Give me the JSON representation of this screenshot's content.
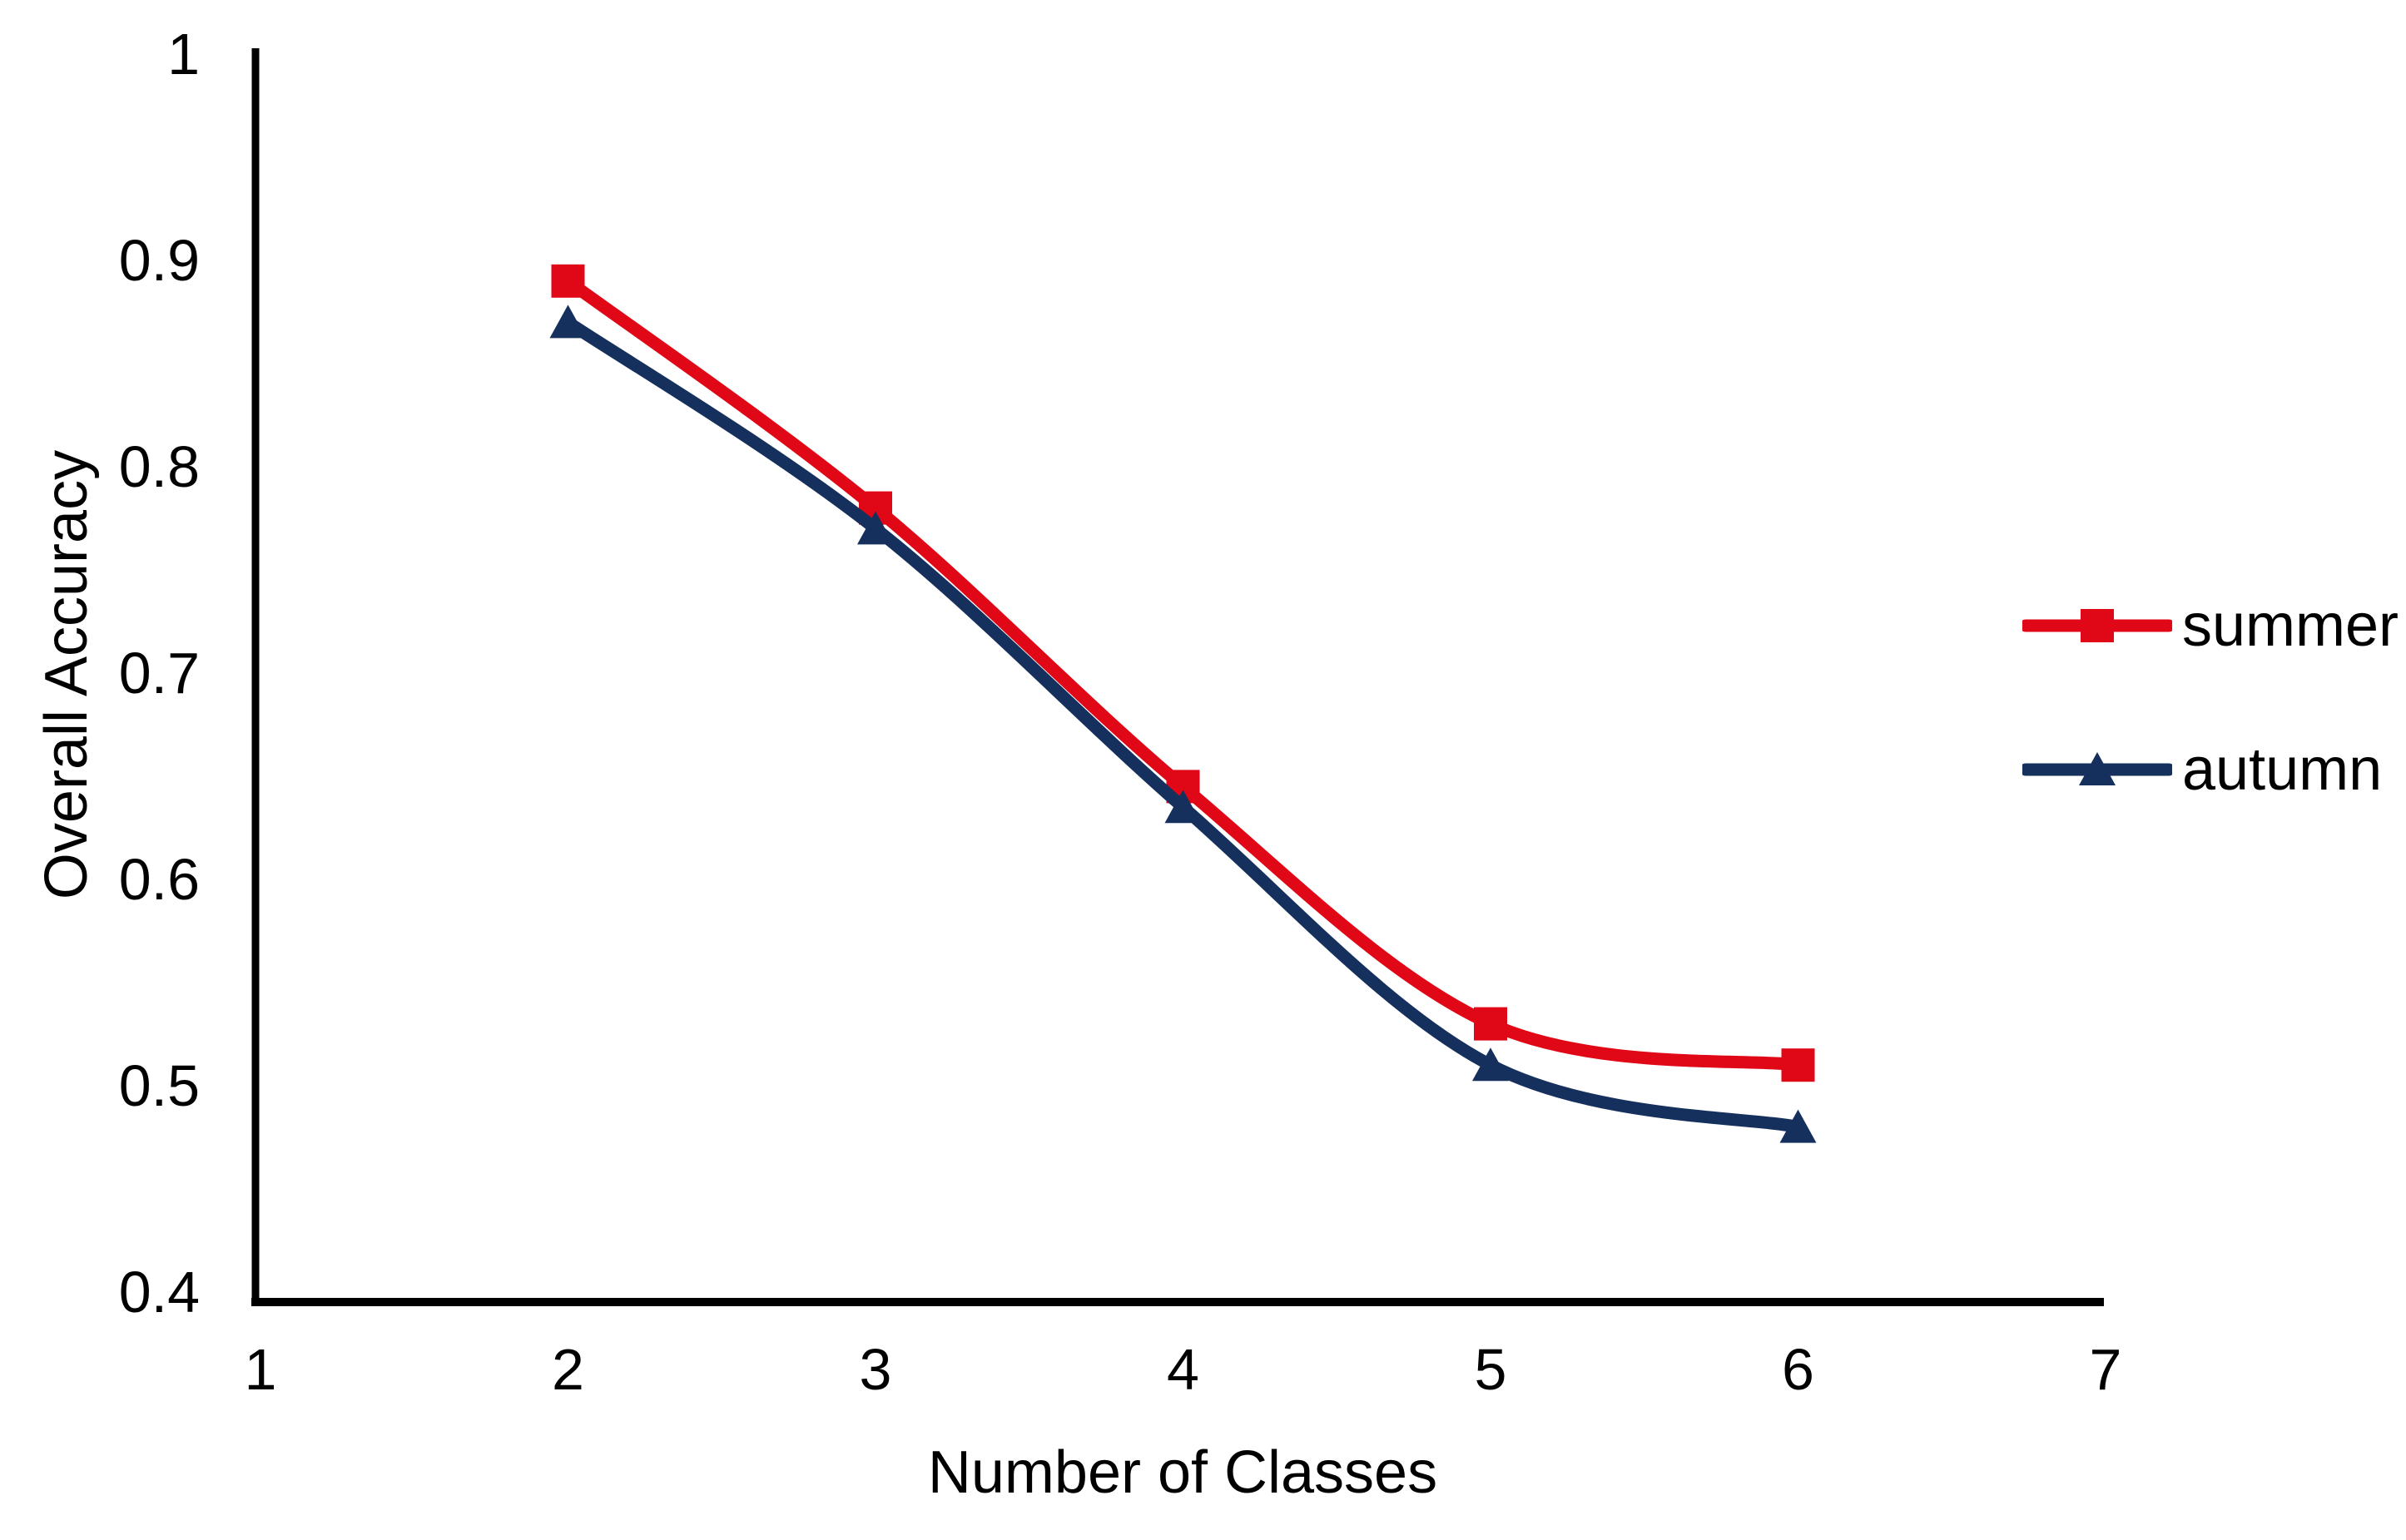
{
  "chart_data": {
    "type": "line",
    "title": "",
    "xlabel": "Number of Classes",
    "ylabel": "Overall Accuracy",
    "x": [
      2,
      3,
      4,
      5,
      6
    ],
    "series": [
      {
        "name": "summer",
        "color": "#e00717",
        "marker": "square",
        "values": [
          0.89,
          0.78,
          0.645,
          0.53,
          0.51
        ]
      },
      {
        "name": "autumn",
        "color": "#16305e",
        "marker": "triangle",
        "values": [
          0.87,
          0.77,
          0.635,
          0.51,
          0.48
        ]
      }
    ],
    "xlim": [
      1,
      7
    ],
    "ylim": [
      0.4,
      1
    ],
    "xticks": [
      {
        "v": 1,
        "label": "1"
      },
      {
        "v": 2,
        "label": "2"
      },
      {
        "v": 3,
        "label": "3"
      },
      {
        "v": 4,
        "label": "4"
      },
      {
        "v": 5,
        "label": "5"
      },
      {
        "v": 6,
        "label": "6"
      },
      {
        "v": 7,
        "label": "7"
      }
    ],
    "yticks": [
      {
        "v": 1,
        "label": "1"
      },
      {
        "v": 0.9,
        "label": "0.9"
      },
      {
        "v": 0.8,
        "label": "0.8"
      },
      {
        "v": 0.7,
        "label": "0.7"
      },
      {
        "v": 0.6,
        "label": "0.6"
      },
      {
        "v": 0.5,
        "label": "0.5"
      },
      {
        "v": 0.4,
        "label": "0.4"
      }
    ],
    "grid": false,
    "smoothed": true,
    "legend_position": "right",
    "axis_color": "#000000",
    "text_color": "#000000",
    "background": "#ffffff"
  }
}
